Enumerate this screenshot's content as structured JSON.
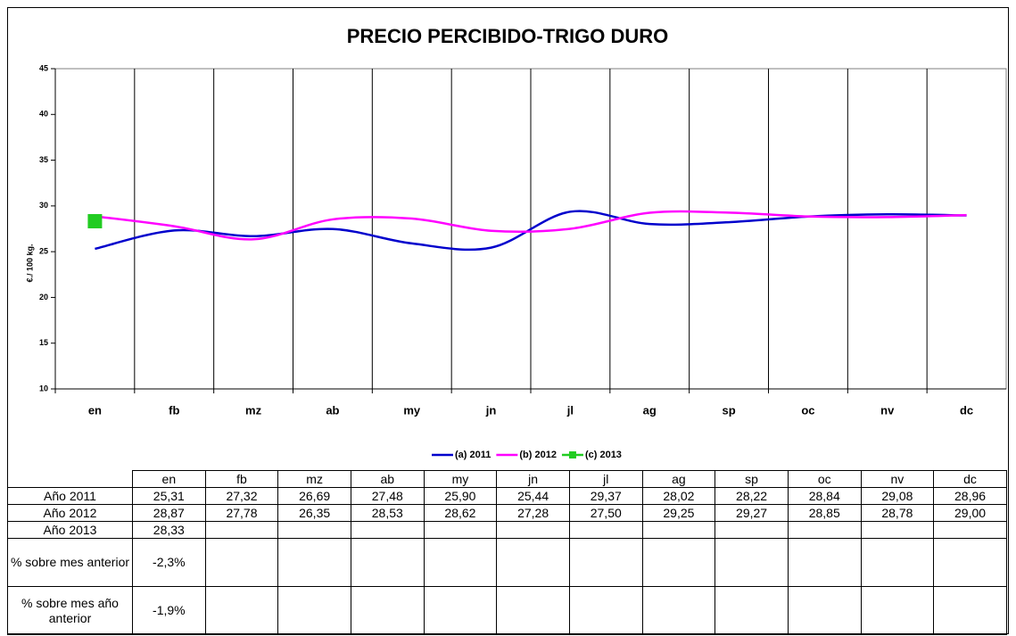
{
  "chart_data": {
    "type": "line",
    "title": "PRECIO PERCIBIDO-TRIGO DURO",
    "y_label": "€./ 100 kg.",
    "categories": [
      "en",
      "fb",
      "mz",
      "ab",
      "my",
      "jn",
      "jl",
      "ag",
      "sp",
      "oc",
      "nv",
      "dc"
    ],
    "series": [
      {
        "name": "(a) 2011",
        "color": "#0000cc",
        "values": [
          25.31,
          27.32,
          26.69,
          27.48,
          25.9,
          25.44,
          29.37,
          28.02,
          28.22,
          28.84,
          29.08,
          28.96
        ],
        "value_labels": [
          "25,31",
          "27,32",
          "26,69",
          "27,48",
          "25,90",
          "25,44",
          "29,37",
          "28,02",
          "28,22",
          "28,84",
          "29,08",
          "28,96"
        ]
      },
      {
        "name": "(b) 2012",
        "color": "#ff00ff",
        "values": [
          28.87,
          27.78,
          26.35,
          28.53,
          28.62,
          27.28,
          27.5,
          29.25,
          29.27,
          28.85,
          28.78,
          29.0
        ],
        "value_labels": [
          "28,87",
          "27,78",
          "26,35",
          "28,53",
          "28,62",
          "27,28",
          "27,50",
          "29,25",
          "29,27",
          "28,85",
          "28,78",
          "29,00"
        ]
      },
      {
        "name": "(c) 2013",
        "color": "#22cc22",
        "marker": "square",
        "values": [
          28.33,
          null,
          null,
          null,
          null,
          null,
          null,
          null,
          null,
          null,
          null,
          null
        ],
        "value_labels": [
          "28,33"
        ]
      }
    ],
    "ylim": [
      10,
      45
    ],
    "yticks": [
      10,
      15,
      20,
      25,
      30,
      35,
      40,
      45
    ],
    "grid": "x",
    "legend": "bottom",
    "smooth": true
  },
  "table": {
    "row_labels": [
      "Año 2011",
      "Año 2012",
      "Año 2013",
      "% sobre mes anterior",
      "% sobre mes año anterior"
    ],
    "pct_rows": [
      [
        "-2,3%"
      ],
      [
        "-1,9%"
      ]
    ]
  }
}
